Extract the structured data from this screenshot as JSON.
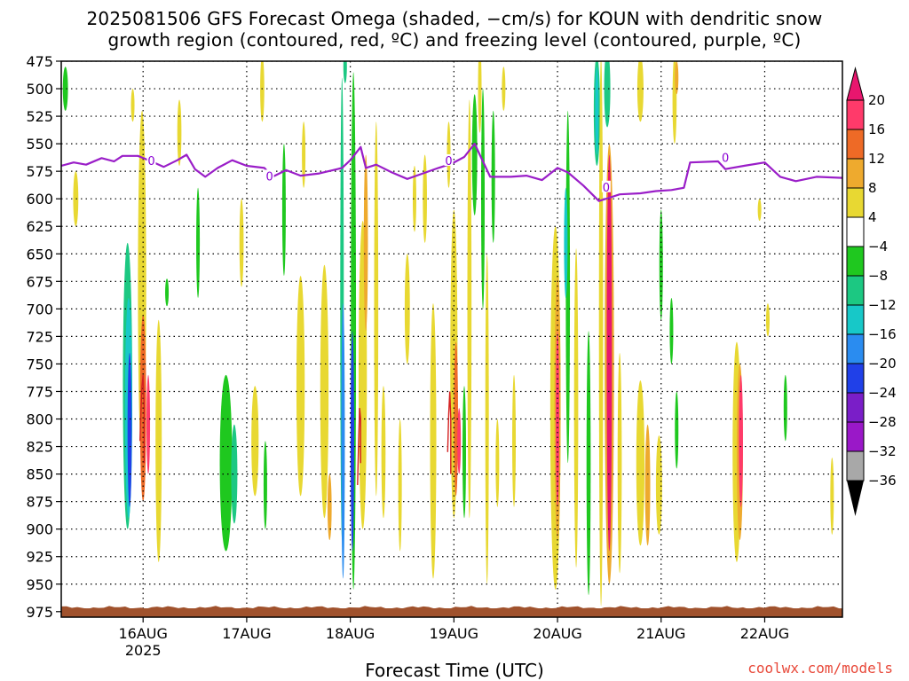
{
  "chart_data": {
    "type": "heatmap",
    "title_line1": "2025081506 GFS Forecast Omega (shaded, −cm/s) for KOUN with dendritic snow",
    "title_line2": "growth region (contoured, red, ºC) and freezing level (contoured, purple, ºC)",
    "xlabel": "Forecast Time (UTC)",
    "credit": "coolwx.com/models",
    "y_axis": {
      "label": "",
      "scale": "pressure (hPa), inverted",
      "ticks": [
        475,
        500,
        525,
        550,
        575,
        600,
        625,
        650,
        675,
        700,
        725,
        750,
        775,
        800,
        825,
        850,
        875,
        900,
        925,
        950,
        975
      ],
      "range": [
        475,
        980
      ]
    },
    "x_axis": {
      "ticks": [
        "16AUG",
        "17AUG",
        "18AUG",
        "19AUG",
        "20AUG",
        "21AUG",
        "22AUG"
      ],
      "tick_days": [
        1,
        2,
        3,
        4,
        5,
        6,
        7
      ],
      "sub_label": "2025",
      "range_days": [
        0.21,
        7.75
      ],
      "grid": "dotted"
    },
    "colorbar": {
      "labels": [
        "20",
        "16",
        "12",
        "8",
        "4",
        "−4",
        "−8",
        "−12",
        "−16",
        "−20",
        "−24",
        "−28",
        "−32",
        "−36"
      ],
      "colors": [
        "#ff3a6a",
        "#ee6a26",
        "#eeaa2e",
        "#e8d832",
        "#ffffff",
        "#1fc81f",
        "#1cc882",
        "#17c8c8",
        "#2a8cf0",
        "#2040e8",
        "#7a1ec8",
        "#9a18c8",
        "#a8a8a8"
      ],
      "top_arrow": "#e8166e",
      "bottom_arrow": "#000000"
    },
    "freezing_level": {
      "label": "0",
      "color": "#9a1ec8",
      "points": [
        [
          0.21,
          570
        ],
        [
          0.33,
          567
        ],
        [
          0.45,
          569
        ],
        [
          0.6,
          563
        ],
        [
          0.72,
          566
        ],
        [
          0.8,
          561
        ],
        [
          0.95,
          561
        ],
        [
          1.08,
          566
        ],
        [
          1.2,
          571
        ],
        [
          1.33,
          565
        ],
        [
          1.42,
          560
        ],
        [
          1.5,
          573
        ],
        [
          1.6,
          580
        ],
        [
          1.72,
          572
        ],
        [
          1.86,
          565
        ],
        [
          2.0,
          570
        ],
        [
          2.17,
          572
        ],
        [
          2.25,
          580
        ],
        [
          2.38,
          574
        ],
        [
          2.52,
          579
        ],
        [
          2.7,
          577
        ],
        [
          2.92,
          572
        ],
        [
          3.0,
          565
        ],
        [
          3.1,
          553
        ],
        [
          3.15,
          572
        ],
        [
          3.25,
          569
        ],
        [
          3.4,
          576
        ],
        [
          3.55,
          582
        ],
        [
          3.7,
          577
        ],
        [
          3.85,
          572
        ],
        [
          3.98,
          568
        ],
        [
          4.1,
          562
        ],
        [
          4.2,
          550
        ],
        [
          4.28,
          566
        ],
        [
          4.35,
          580
        ],
        [
          4.55,
          580
        ],
        [
          4.7,
          579
        ],
        [
          4.85,
          583
        ],
        [
          5.0,
          572
        ],
        [
          5.1,
          576
        ],
        [
          5.25,
          588
        ],
        [
          5.4,
          602
        ],
        [
          5.5,
          599
        ],
        [
          5.6,
          596
        ],
        [
          5.8,
          595
        ],
        [
          5.95,
          593
        ],
        [
          6.1,
          592
        ],
        [
          6.22,
          590
        ],
        [
          6.28,
          567
        ],
        [
          6.55,
          566
        ],
        [
          6.62,
          573
        ],
        [
          6.8,
          570
        ],
        [
          7.0,
          567
        ],
        [
          7.15,
          580
        ],
        [
          7.3,
          584
        ],
        [
          7.5,
          580
        ],
        [
          7.75,
          581
        ]
      ]
    },
    "omega_cells": [
      {
        "t": 0.25,
        "p": 500,
        "w": 0.05,
        "h": 40,
        "v": -6
      },
      {
        "t": 0.35,
        "p": 600,
        "w": 0.05,
        "h": 50,
        "v": 5
      },
      {
        "t": 0.9,
        "p": 515,
        "w": 0.03,
        "h": 30,
        "v": 5
      },
      {
        "t": 0.85,
        "p": 770,
        "w": 0.09,
        "h": 260,
        "v": -8
      },
      {
        "t": 0.86,
        "p": 790,
        "w": 0.07,
        "h": 200,
        "v": -14
      },
      {
        "t": 0.87,
        "p": 810,
        "w": 0.04,
        "h": 140,
        "v": -21
      },
      {
        "t": 0.99,
        "p": 680,
        "w": 0.08,
        "h": 320,
        "v": 6
      },
      {
        "t": 1.0,
        "p": 790,
        "w": 0.06,
        "h": 170,
        "v": 12
      },
      {
        "t": 1.05,
        "p": 805,
        "w": 0.03,
        "h": 90,
        "v": 17
      },
      {
        "t": 1.15,
        "p": 820,
        "w": 0.06,
        "h": 220,
        "v": 6
      },
      {
        "t": 1.23,
        "p": 685,
        "w": 0.02,
        "h": 25,
        "v": -6
      },
      {
        "t": 1.35,
        "p": 540,
        "w": 0.04,
        "h": 60,
        "v": 5
      },
      {
        "t": 1.53,
        "p": 640,
        "w": 0.02,
        "h": 100,
        "v": -6
      },
      {
        "t": 1.8,
        "p": 840,
        "w": 0.12,
        "h": 160,
        "v": -7
      },
      {
        "t": 1.88,
        "p": 850,
        "w": 0.06,
        "h": 90,
        "v": -11
      },
      {
        "t": 1.95,
        "p": 640,
        "w": 0.04,
        "h": 80,
        "v": 5
      },
      {
        "t": 2.08,
        "p": 820,
        "w": 0.07,
        "h": 100,
        "v": 5
      },
      {
        "t": 2.15,
        "p": 500,
        "w": 0.04,
        "h": 60,
        "v": 6
      },
      {
        "t": 2.18,
        "p": 860,
        "w": 0.03,
        "h": 80,
        "v": -7
      },
      {
        "t": 2.36,
        "p": 610,
        "w": 0.025,
        "h": 120,
        "v": -6
      },
      {
        "t": 2.52,
        "p": 770,
        "w": 0.08,
        "h": 200,
        "v": 5
      },
      {
        "t": 2.55,
        "p": 560,
        "w": 0.02,
        "h": 60,
        "v": 5
      },
      {
        "t": 2.75,
        "p": 775,
        "w": 0.08,
        "h": 230,
        "v": 6
      },
      {
        "t": 2.8,
        "p": 880,
        "w": 0.04,
        "h": 60,
        "v": 10
      },
      {
        "t": 2.92,
        "p": 700,
        "w": 0.03,
        "h": 420,
        "v": -8
      },
      {
        "t": 2.93,
        "p": 820,
        "w": 0.02,
        "h": 250,
        "v": -17
      },
      {
        "t": 2.95,
        "p": 480,
        "w": 0.03,
        "h": 30,
        "v": -10
      },
      {
        "t": 3.03,
        "p": 720,
        "w": 0.05,
        "h": 470,
        "v": -7
      },
      {
        "t": 3.02,
        "p": 820,
        "w": 0.02,
        "h": 200,
        "v": -23
      },
      {
        "t": 3.12,
        "p": 760,
        "w": 0.08,
        "h": 280,
        "v": 6
      },
      {
        "t": 3.15,
        "p": 640,
        "w": 0.04,
        "h": 160,
        "v": 11
      },
      {
        "t": 3.25,
        "p": 700,
        "w": 0.04,
        "h": 340,
        "v": 5
      },
      {
        "t": 3.32,
        "p": 830,
        "w": 0.04,
        "h": 120,
        "v": 6
      },
      {
        "t": 3.48,
        "p": 860,
        "w": 0.02,
        "h": 120,
        "v": 5
      },
      {
        "t": 3.55,
        "p": 700,
        "w": 0.05,
        "h": 100,
        "v": 5
      },
      {
        "t": 3.62,
        "p": 600,
        "w": 0.03,
        "h": 60,
        "v": 5
      },
      {
        "t": 3.72,
        "p": 600,
        "w": 0.04,
        "h": 80,
        "v": 5
      },
      {
        "t": 3.8,
        "p": 820,
        "w": 0.06,
        "h": 250,
        "v": 6
      },
      {
        "t": 3.95,
        "p": 560,
        "w": 0.03,
        "h": 60,
        "v": 5
      },
      {
        "t": 4.0,
        "p": 750,
        "w": 0.07,
        "h": 280,
        "v": 6
      },
      {
        "t": 4.02,
        "p": 800,
        "w": 0.04,
        "h": 140,
        "v": 12
      },
      {
        "t": 4.05,
        "p": 820,
        "w": 0.02,
        "h": 60,
        "v": 17
      },
      {
        "t": 4.1,
        "p": 830,
        "w": 0.02,
        "h": 120,
        "v": -6
      },
      {
        "t": 4.15,
        "p": 700,
        "w": 0.04,
        "h": 380,
        "v": 5
      },
      {
        "t": 4.2,
        "p": 560,
        "w": 0.05,
        "h": 110,
        "v": -7
      },
      {
        "t": 4.28,
        "p": 600,
        "w": 0.03,
        "h": 200,
        "v": -7
      },
      {
        "t": 4.25,
        "p": 500,
        "w": 0.03,
        "h": 80,
        "v": 5
      },
      {
        "t": 4.32,
        "p": 800,
        "w": 0.03,
        "h": 300,
        "v": 5
      },
      {
        "t": 4.38,
        "p": 580,
        "w": 0.025,
        "h": 120,
        "v": -6
      },
      {
        "t": 4.42,
        "p": 840,
        "w": 0.03,
        "h": 80,
        "v": 5
      },
      {
        "t": 4.48,
        "p": 500,
        "w": 0.02,
        "h": 40,
        "v": 5
      },
      {
        "t": 4.58,
        "p": 820,
        "w": 0.02,
        "h": 120,
        "v": 5
      },
      {
        "t": 4.98,
        "p": 790,
        "w": 0.1,
        "h": 330,
        "v": 6
      },
      {
        "t": 5.0,
        "p": 790,
        "w": 0.06,
        "h": 240,
        "v": 10
      },
      {
        "t": 5.0,
        "p": 800,
        "w": 0.03,
        "h": 160,
        "v": 18
      },
      {
        "t": 5.1,
        "p": 680,
        "w": 0.04,
        "h": 320,
        "v": -7
      },
      {
        "t": 5.08,
        "p": 640,
        "w": 0.02,
        "h": 100,
        "v": -12
      },
      {
        "t": 5.18,
        "p": 790,
        "w": 0.04,
        "h": 290,
        "v": 5
      },
      {
        "t": 5.3,
        "p": 840,
        "w": 0.04,
        "h": 240,
        "v": -6
      },
      {
        "t": 5.38,
        "p": 520,
        "w": 0.06,
        "h": 100,
        "v": -8
      },
      {
        "t": 5.38,
        "p": 520,
        "w": 0.03,
        "h": 80,
        "v": -14
      },
      {
        "t": 5.48,
        "p": 500,
        "w": 0.06,
        "h": 70,
        "v": -11
      },
      {
        "t": 5.42,
        "p": 720,
        "w": 0.04,
        "h": 500,
        "v": 5
      },
      {
        "t": 5.5,
        "p": 750,
        "w": 0.09,
        "h": 400,
        "v": 10
      },
      {
        "t": 5.5,
        "p": 740,
        "w": 0.05,
        "h": 360,
        "v": 20
      },
      {
        "t": 5.6,
        "p": 840,
        "w": 0.04,
        "h": 200,
        "v": 5
      },
      {
        "t": 5.8,
        "p": 500,
        "w": 0.06,
        "h": 60,
        "v": 5
      },
      {
        "t": 5.8,
        "p": 840,
        "w": 0.08,
        "h": 150,
        "v": 5
      },
      {
        "t": 5.87,
        "p": 860,
        "w": 0.05,
        "h": 110,
        "v": 10
      },
      {
        "t": 5.98,
        "p": 860,
        "w": 0.06,
        "h": 90,
        "v": 5
      },
      {
        "t": 6.13,
        "p": 510,
        "w": 0.04,
        "h": 80,
        "v": 5
      },
      {
        "t": 6.15,
        "p": 490,
        "w": 0.02,
        "h": 30,
        "v": 10
      },
      {
        "t": 6.0,
        "p": 660,
        "w": 0.03,
        "h": 100,
        "v": -6
      },
      {
        "t": 6.1,
        "p": 720,
        "w": 0.02,
        "h": 60,
        "v": -6
      },
      {
        "t": 6.15,
        "p": 810,
        "w": 0.02,
        "h": 70,
        "v": -6
      },
      {
        "t": 6.73,
        "p": 830,
        "w": 0.08,
        "h": 200,
        "v": 5
      },
      {
        "t": 6.76,
        "p": 830,
        "w": 0.06,
        "h": 160,
        "v": 11
      },
      {
        "t": 6.77,
        "p": 820,
        "w": 0.04,
        "h": 120,
        "v": 18
      },
      {
        "t": 6.95,
        "p": 610,
        "w": 0.02,
        "h": 20,
        "v": 5
      },
      {
        "t": 7.03,
        "p": 710,
        "w": 0.02,
        "h": 30,
        "v": 5
      },
      {
        "t": 7.2,
        "p": 790,
        "w": 0.02,
        "h": 60,
        "v": -6
      },
      {
        "t": 7.65,
        "p": 870,
        "w": 0.02,
        "h": 70,
        "v": 5
      }
    ],
    "dgz_contours": [
      {
        "points": [
          [
            0.97,
            820
          ],
          [
            0.98,
            790
          ],
          [
            0.99,
            770
          ],
          [
            1.0,
            760
          ],
          [
            1.01,
            790
          ],
          [
            1.01,
            840
          ]
        ]
      },
      {
        "points": [
          [
            3.07,
            860
          ],
          [
            3.08,
            820
          ],
          [
            3.09,
            790
          ],
          [
            3.1,
            800
          ],
          [
            3.1,
            840
          ]
        ]
      },
      {
        "points": [
          [
            3.94,
            830
          ],
          [
            3.95,
            795
          ],
          [
            3.96,
            775
          ],
          [
            3.97,
            800
          ],
          [
            3.97,
            850
          ]
        ]
      }
    ],
    "ground_color": "#a0522d",
    "ground_level": 972
  }
}
